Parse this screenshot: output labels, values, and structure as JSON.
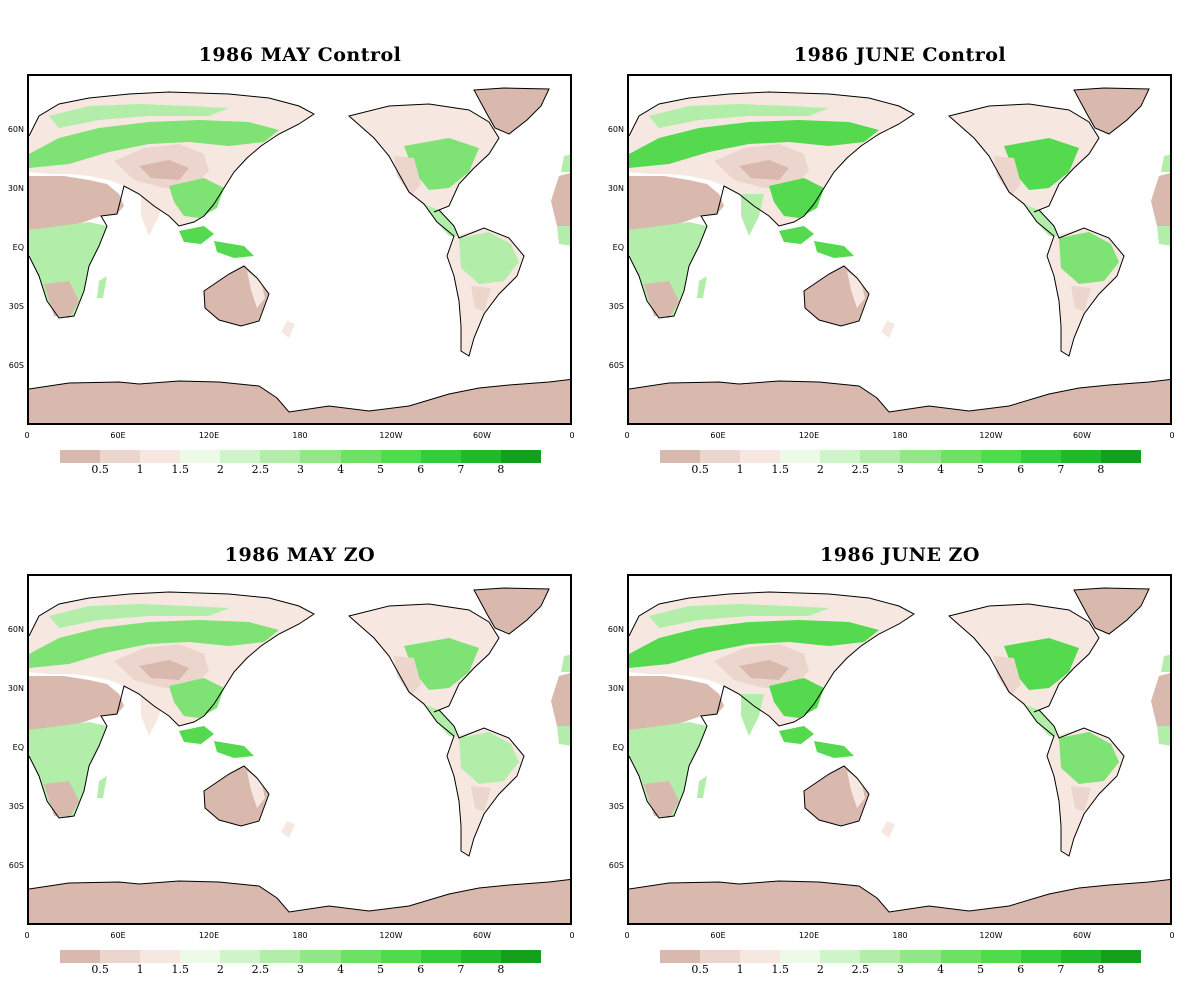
{
  "panels": [
    {
      "title": "1986 MAY Control",
      "variant": "may"
    },
    {
      "title": "1986 JUNE Control",
      "variant": "june"
    },
    {
      "title": "1986 MAY ZO",
      "variant": "may"
    },
    {
      "title": "1986 JUNE ZO",
      "variant": "june"
    }
  ],
  "lat_labels": [
    "60N",
    "30N",
    "EQ",
    "30S",
    "60S"
  ],
  "lon_labels": [
    "0",
    "60E",
    "120E",
    "180",
    "120W",
    "60W",
    "0"
  ],
  "colorbar": {
    "colors": [
      "#d9b8ad",
      "#ebd5cc",
      "#f6e8e0",
      "#eefae8",
      "#cdf5c8",
      "#b2eeaa",
      "#92e688",
      "#6fe066",
      "#4fdb4c",
      "#33cc3a",
      "#1fb92a",
      "#14a01d"
    ],
    "labels": [
      "0.5",
      "1",
      "1.5",
      "2",
      "2.5",
      "3",
      "4",
      "5",
      "6",
      "7",
      "8"
    ]
  },
  "map_colors": {
    "desert": "#d9b8ad",
    "dry": "#ebd5cc",
    "semi": "#f6e8e0",
    "light_green": "#b2eeaa",
    "mid_green": "#7ee274",
    "green": "#55d94f",
    "ice": "#d9b8ad"
  }
}
